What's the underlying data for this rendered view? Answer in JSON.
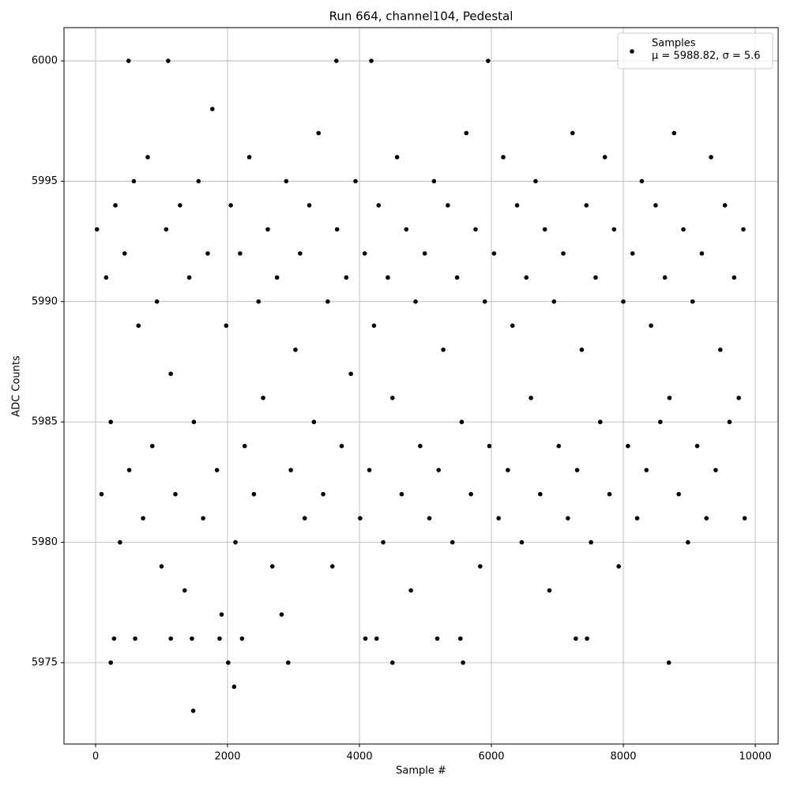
{
  "chart_data": {
    "type": "scatter",
    "title": "Run 664, channel104, Pedestal",
    "x_label": "Sample #",
    "y_label": "ADC Counts",
    "xlim": [
      -479,
      10347
    ],
    "ylim": [
      5971.62,
      6001.38
    ],
    "xticks": [
      0,
      2000,
      4000,
      6000,
      8000,
      10000
    ],
    "yticks": [
      5975,
      5980,
      5985,
      5990,
      5995,
      6000
    ],
    "grid": true,
    "legend_position": "upper-right",
    "legend_note": "μ = 5988.82, σ = 5.6",
    "series": [
      {
        "name": "Samples",
        "color": "#000000",
        "x": [
          20,
          90,
          160,
          230,
          300,
          370,
          440,
          510,
          580,
          650,
          720,
          790,
          860,
          930,
          1000,
          1070,
          1140,
          1210,
          1280,
          1350,
          1420,
          1490,
          1560,
          1630,
          1700,
          1770,
          1840,
          1910,
          1980,
          2050,
          2120,
          2190,
          2260,
          2330,
          2400,
          2470,
          2540,
          2610,
          2680,
          2750,
          2820,
          2890,
          2960,
          3030,
          3100,
          3170,
          3240,
          3310,
          3380,
          3450,
          3520,
          3590,
          3660,
          3730,
          3800,
          3870,
          3940,
          4010,
          4080,
          4150,
          4220,
          4290,
          4360,
          4430,
          4500,
          4570,
          4640,
          4710,
          4780,
          4850,
          4920,
          4990,
          5060,
          5130,
          5200,
          5270,
          5340,
          5410,
          5480,
          5550,
          5620,
          5690,
          5760,
          5830,
          5900,
          5970,
          6040,
          6110,
          6180,
          6250,
          6320,
          6390,
          6460,
          6530,
          6600,
          6670,
          6740,
          6810,
          6880,
          6950,
          7020,
          7090,
          7160,
          7230,
          7300,
          7370,
          7440,
          7510,
          7580,
          7650,
          7720,
          7790,
          7860,
          7930,
          8000,
          8070,
          8140,
          8210,
          8280,
          8350,
          8420,
          8490,
          8560,
          8630,
          8700,
          8770,
          8840,
          8910,
          8980,
          9050,
          9120,
          9190,
          9260,
          9330,
          9400,
          9470,
          9540,
          9610,
          9680,
          9750,
          9820,
          9840,
          500,
          1100,
          3650,
          4180,
          5950,
          1480,
          2100,
          230,
          2010,
          2920,
          4500,
          5570,
          8690,
          280,
          600,
          1140,
          1460,
          1880,
          2220,
          4090,
          4260,
          5180,
          5530,
          7280,
          7450
        ],
        "values": [
          5993,
          5982,
          5991,
          5985,
          5994,
          5980,
          5992,
          5983,
          5995,
          5989,
          5981,
          5996,
          5984,
          5990,
          5979,
          5993,
          5987,
          5982,
          5994,
          5978,
          5991,
          5985,
          5995,
          5981,
          5992,
          5998,
          5983,
          5977,
          5989,
          5994,
          5980,
          5992,
          5984,
          5996,
          5982,
          5990,
          5986,
          5993,
          5979,
          5991,
          5977,
          5995,
          5983,
          5988,
          5992,
          5981,
          5994,
          5985,
          5997,
          5982,
          5990,
          5979,
          5993,
          5984,
          5991,
          5987,
          5995,
          5981,
          5992,
          5983,
          5989,
          5994,
          5980,
          5991,
          5986,
          5996,
          5982,
          5993,
          5978,
          5990,
          5984,
          5992,
          5981,
          5995,
          5983,
          5988,
          5994,
          5980,
          5991,
          5985,
          5997,
          5982,
          5993,
          5979,
          5990,
          5984,
          5992,
          5981,
          5996,
          5983,
          5989,
          5994,
          5980,
          5991,
          5986,
          5995,
          5982,
          5993,
          5978,
          5990,
          5984,
          5992,
          5981,
          5997,
          5983,
          5988,
          5994,
          5980,
          5991,
          5985,
          5996,
          5982,
          5993,
          5979,
          5990,
          5984,
          5992,
          5981,
          5995,
          5983,
          5989,
          5994,
          5985,
          5991,
          5986,
          5997,
          5982,
          5993,
          5980,
          5990,
          5984,
          5992,
          5981,
          5996,
          5983,
          5988,
          5994,
          5985,
          5991,
          5986,
          5993,
          5981,
          6000,
          6000,
          6000,
          6000,
          6000,
          5973,
          5974,
          5975,
          5975,
          5975,
          5975,
          5975,
          5975,
          5976,
          5976,
          5976,
          5976,
          5976,
          5976,
          5976,
          5976,
          5976,
          5976,
          5976,
          5976
        ]
      }
    ]
  }
}
